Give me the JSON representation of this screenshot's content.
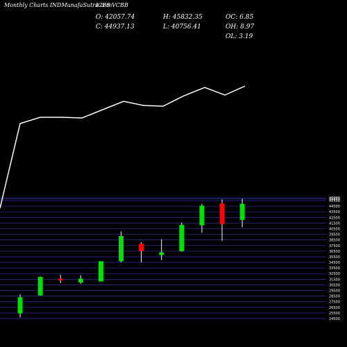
{
  "header": {
    "watermark": "Monthly Charts INDMunafaSutra.com",
    "symbol": "ICES VCBB",
    "open": "O: 42057.74",
    "high": "H: 45832.35",
    "oc": "OC: 6.85",
    "close": "C: 44937.13",
    "low": "L: 40756.41",
    "oh": "OH: 8.97",
    "ol": "OL: 3.19"
  },
  "chart_data": {
    "type": "candlestick",
    "ylim": [
      24000,
      46000
    ],
    "y_ticks": [
      46000,
      45833,
      45500,
      44500,
      43500,
      42500,
      41500,
      40500,
      39500,
      38500,
      37500,
      36500,
      35500,
      34500,
      33500,
      32500,
      31500,
      30500,
      29500,
      28500,
      27500,
      26500,
      25500,
      24500
    ],
    "candles": [
      {
        "open": 25400,
        "high": 28800,
        "low": 24700,
        "close": 28300
      },
      {
        "open": 28600,
        "high": 32000,
        "low": 28600,
        "close": 31900
      },
      {
        "open": 31600,
        "high": 32300,
        "low": 30800,
        "close": 31300
      },
      {
        "open": 30900,
        "high": 32200,
        "low": 30700,
        "close": 31600
      },
      {
        "open": 31100,
        "high": 34700,
        "low": 31100,
        "close": 34700
      },
      {
        "open": 34700,
        "high": 40000,
        "low": 34500,
        "close": 39200
      },
      {
        "open": 37800,
        "high": 38100,
        "low": 34500,
        "close": 36500
      },
      {
        "open": 35800,
        "high": 38600,
        "low": 34900,
        "close": 36300
      },
      {
        "open": 36500,
        "high": 41600,
        "low": 36400,
        "close": 41200
      },
      {
        "open": 41100,
        "high": 44900,
        "low": 39800,
        "close": 44600
      },
      {
        "open": 45000,
        "high": 45700,
        "low": 38300,
        "close": 41300
      },
      {
        "open": 42057.74,
        "high": 45832.35,
        "low": 40756.41,
        "close": 44937.13
      }
    ],
    "indicator_line": [
      300,
      178,
      169,
      169,
      170,
      158,
      146,
      152,
      153,
      138,
      126,
      137,
      124
    ]
  }
}
